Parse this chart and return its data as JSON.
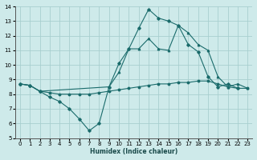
{
  "xlabel": "Humidex (Indice chaleur)",
  "xlim": [
    -0.5,
    23.5
  ],
  "ylim": [
    5,
    14
  ],
  "xticks": [
    0,
    1,
    2,
    3,
    4,
    5,
    6,
    7,
    8,
    9,
    10,
    11,
    12,
    13,
    14,
    15,
    16,
    17,
    18,
    19,
    20,
    21,
    22,
    23
  ],
  "yticks": [
    5,
    6,
    7,
    8,
    9,
    10,
    11,
    12,
    13,
    14
  ],
  "bg_color": "#ceeaea",
  "grid_color": "#a8cfcf",
  "line_color": "#1a6b6b",
  "lines": [
    {
      "x": [
        0,
        1,
        2,
        3,
        4,
        5,
        6,
        7,
        8,
        9,
        10,
        11,
        12,
        13,
        14,
        15,
        16,
        17,
        18,
        19,
        20,
        21,
        22
      ],
      "y": [
        8.7,
        8.6,
        8.2,
        7.8,
        7.5,
        7.0,
        6.3,
        5.5,
        6.0,
        8.5,
        10.1,
        11.1,
        12.5,
        13.8,
        13.2,
        13.0,
        12.7,
        11.4,
        10.9,
        9.2,
        8.5,
        8.7,
        8.4
      ]
    },
    {
      "x": [
        0,
        1,
        2,
        3,
        4,
        5,
        6,
        7,
        8,
        9,
        10,
        11,
        12,
        13,
        14,
        15,
        16,
        17,
        18,
        19,
        20,
        21,
        22,
        23
      ],
      "y": [
        8.7,
        8.6,
        8.2,
        8.1,
        8.0,
        8.0,
        8.0,
        8.0,
        8.1,
        8.2,
        8.3,
        8.4,
        8.5,
        8.6,
        8.7,
        8.7,
        8.8,
        8.8,
        8.9,
        8.9,
        8.7,
        8.5,
        8.4,
        8.4
      ]
    },
    {
      "x": [
        0,
        1,
        2,
        9,
        10,
        11,
        12,
        13,
        14,
        15,
        16,
        17,
        18,
        19,
        20,
        21,
        22,
        23
      ],
      "y": [
        8.7,
        8.6,
        8.2,
        8.5,
        9.5,
        11.1,
        11.1,
        11.8,
        11.1,
        11.0,
        12.7,
        12.2,
        11.4,
        11.0,
        9.2,
        8.5,
        8.7,
        8.4
      ]
    }
  ]
}
